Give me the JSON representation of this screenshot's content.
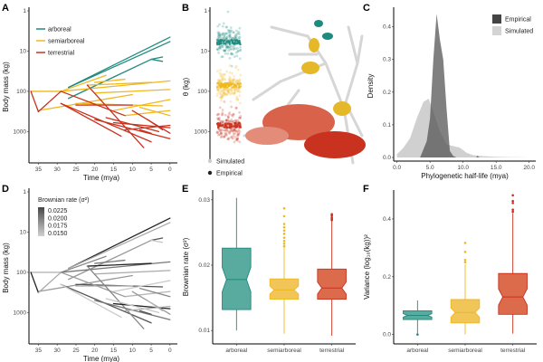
{
  "colors": {
    "arboreal": "#1f8a7e",
    "semiarboreal": "#f0b81e",
    "terrestrial": "#c8321e",
    "arboreal_fill": "#5aab9f",
    "semiarboreal_fill": "#f1c558",
    "terrestrial_fill": "#dc6b4c",
    "empirical": "#555555",
    "simulated": "#c8c8c8"
  },
  "chart_data": [
    {
      "panel": "A",
      "type": "line",
      "xlabel": "Time (mya)",
      "ylabel": "Body mass (kg)",
      "xticks": [
        "35",
        "30",
        "25",
        "20",
        "15",
        "10",
        "5",
        "0"
      ],
      "xlim": [
        37.5,
        -1
      ],
      "yticks": [
        "1",
        "10",
        "100",
        "1000"
      ],
      "ylog": true,
      "ylim": [
        1,
        6000
      ],
      "legend": [
        {
          "name": "arboreal"
        },
        {
          "name": "semiarboreal"
        },
        {
          "name": "terrestrial"
        }
      ],
      "segments": [
        {
          "g": "arboreal",
          "x1": 27,
          "y1": 80,
          "x2": 0,
          "y2": 4.5
        },
        {
          "g": "arboreal",
          "x1": 27,
          "y1": 80,
          "x2": 0,
          "y2": 5.8
        },
        {
          "g": "arboreal",
          "x1": 27,
          "y1": 150,
          "x2": 5,
          "y2": 16
        },
        {
          "g": "arboreal",
          "x1": 5,
          "y1": 16,
          "x2": 2,
          "y2": 14
        },
        {
          "g": "arboreal",
          "x1": 5,
          "y1": 16,
          "x2": 2,
          "y2": 18
        },
        {
          "g": "semiarboreal",
          "x1": 37,
          "y1": 100,
          "x2": 29,
          "y2": 100
        },
        {
          "g": "semiarboreal",
          "x1": 29,
          "y1": 100,
          "x2": 17,
          "y2": 40
        },
        {
          "g": "semiarboreal",
          "x1": 29,
          "y1": 100,
          "x2": 0,
          "y2": 55
        },
        {
          "g": "semiarboreal",
          "x1": 22,
          "y1": 70,
          "x2": 5,
          "y2": 60
        },
        {
          "g": "semiarboreal",
          "x1": 20,
          "y1": 110,
          "x2": 0,
          "y2": 90
        },
        {
          "g": "semiarboreal",
          "x1": 35,
          "y1": 300,
          "x2": 10,
          "y2": 120
        },
        {
          "g": "semiarboreal",
          "x1": 25,
          "y1": 200,
          "x2": 2,
          "y2": 230
        },
        {
          "g": "semiarboreal",
          "x1": 15,
          "y1": 300,
          "x2": 0,
          "y2": 160
        },
        {
          "g": "semiarboreal",
          "x1": 12,
          "y1": 400,
          "x2": 0,
          "y2": 300
        },
        {
          "g": "semiarboreal",
          "x1": 8,
          "y1": 250,
          "x2": 0,
          "y2": 400
        },
        {
          "g": "semiarboreal",
          "x1": 20,
          "y1": 60,
          "x2": 12,
          "y2": 50
        },
        {
          "g": "terrestrial",
          "x1": 37,
          "y1": 100,
          "x2": 35,
          "y2": 320
        },
        {
          "g": "terrestrial",
          "x1": 35,
          "y1": 320,
          "x2": 29,
          "y2": 100
        },
        {
          "g": "terrestrial",
          "x1": 29,
          "y1": 100,
          "x2": 12,
          "y2": 400
        },
        {
          "g": "terrestrial",
          "x1": 29,
          "y1": 200,
          "x2": 5,
          "y2": 1800
        },
        {
          "g": "terrestrial",
          "x1": 29,
          "y1": 200,
          "x2": 13,
          "y2": 1300
        },
        {
          "g": "terrestrial",
          "x1": 25,
          "y1": 220,
          "x2": 10,
          "y2": 220
        },
        {
          "g": "terrestrial",
          "x1": 22,
          "y1": 70,
          "x2": 7,
          "y2": 2500
        },
        {
          "g": "terrestrial",
          "x1": 20,
          "y1": 500,
          "x2": 0,
          "y2": 1500
        },
        {
          "g": "terrestrial",
          "x1": 15,
          "y1": 600,
          "x2": 0,
          "y2": 800
        },
        {
          "g": "terrestrial",
          "x1": 12,
          "y1": 900,
          "x2": 0,
          "y2": 700
        },
        {
          "g": "terrestrial",
          "x1": 10,
          "y1": 300,
          "x2": 0,
          "y2": 1100
        },
        {
          "g": "terrestrial",
          "x1": 8,
          "y1": 900,
          "x2": 5,
          "y2": 1100
        },
        {
          "g": "terrestrial",
          "x1": 17,
          "y1": 450,
          "x2": 3,
          "y2": 1000
        },
        {
          "g": "terrestrial",
          "x1": 6,
          "y1": 500,
          "x2": 2,
          "y2": 900
        }
      ]
    },
    {
      "panel": "B",
      "type": "scatter",
      "ylabel": "θ (kg)",
      "ylog": true,
      "yticks": [
        "1",
        "10",
        "100",
        "1000"
      ],
      "legend": [
        {
          "name": "Simulated"
        },
        {
          "name": "Empirical"
        }
      ],
      "groups": [
        {
          "name": "arboreal",
          "center": 6,
          "spread": [
            2,
            25
          ]
        },
        {
          "name": "semiarboreal",
          "center": 70,
          "spread": [
            25,
            180
          ]
        },
        {
          "name": "terrestrial",
          "center": 700,
          "spread": [
            350,
            1500
          ]
        }
      ]
    },
    {
      "panel": "C",
      "type": "area",
      "xlabel": "Phylogenetic half-life (mya)",
      "ylabel": "Density",
      "xticks": [
        "0.0",
        "5.0",
        "10.0",
        "15.0",
        "20.0"
      ],
      "xlim": [
        -0.5,
        21
      ],
      "yticks": [
        "0.0",
        "0.1",
        "0.2",
        "0.3",
        "0.4"
      ],
      "ylim": [
        0,
        0.46
      ],
      "legend": [
        {
          "name": "Empirical"
        },
        {
          "name": "Simulated"
        }
      ],
      "series": [
        {
          "name": "Simulated",
          "x": [
            0,
            0.5,
            1,
            2,
            3,
            4,
            4.8,
            5.5,
            6.5,
            7.5,
            8.5,
            9.5,
            10.5,
            11.5,
            13,
            15,
            17,
            20
          ],
          "y": [
            0.01,
            0.02,
            0.03,
            0.06,
            0.12,
            0.17,
            0.18,
            0.14,
            0.08,
            0.04,
            0.035,
            0.03,
            0.015,
            0.007,
            0.004,
            0.002,
            0.001,
            0
          ]
        },
        {
          "name": "Empirical",
          "x": [
            3.5,
            4.5,
            5,
            5.5,
            6,
            6.5,
            7,
            7.5,
            8,
            8.5,
            9,
            12,
            12.2,
            12.4
          ],
          "y": [
            0,
            0.05,
            0.12,
            0.3,
            0.44,
            0.36,
            0.3,
            0.15,
            0.02,
            0.005,
            0,
            0,
            0.006,
            0
          ]
        }
      ]
    },
    {
      "panel": "D",
      "type": "line",
      "xlabel": "Time (mya)",
      "ylabel": "Body mass (kg)",
      "xticks": [
        "35",
        "30",
        "25",
        "20",
        "15",
        "10",
        "5",
        "0"
      ],
      "yticks": [
        "1",
        "10",
        "100",
        "1000"
      ],
      "legend_title": "Brownian rate (σ²)",
      "legend": [
        "0.0225",
        "0.0200",
        "0.0175",
        "0.0150"
      ]
    },
    {
      "panel": "E",
      "type": "box",
      "ylabel": "Brownian rate (σ²)",
      "categories": [
        "arboreal",
        "semiarboreal",
        "terrestrial"
      ],
      "yticks": [
        "0.01",
        "0.02",
        "0.03"
      ],
      "ylim": [
        0.0085,
        0.0315
      ],
      "boxes": [
        {
          "min": 0.01,
          "q1": 0.0132,
          "median": 0.0178,
          "q3": 0.0226,
          "max": 0.0303,
          "outliers": []
        },
        {
          "min": 0.0095,
          "q1": 0.0148,
          "median": 0.0162,
          "q3": 0.0179,
          "max": 0.0227,
          "outliers": [
            0.0229,
            0.0233,
            0.0237,
            0.0242,
            0.0248,
            0.0253,
            0.0258,
            0.0263,
            0.0275,
            0.0287
          ]
        },
        {
          "min": 0.0092,
          "q1": 0.0148,
          "median": 0.0165,
          "q3": 0.0194,
          "max": 0.0268,
          "outliers": [
            0.0269,
            0.0271,
            0.0273,
            0.0276,
            0.0278
          ]
        }
      ]
    },
    {
      "panel": "F",
      "type": "box",
      "ylabel": "Variance (log₁₀(kg))²",
      "categories": [
        "arboreal",
        "semiarboreal",
        "terrestrial"
      ],
      "yticks": [
        "0.0",
        "0.2",
        "0.4"
      ],
      "ylim": [
        -0.02,
        0.5
      ],
      "boxes": [
        {
          "min": 0.003,
          "q1": 0.052,
          "median": 0.066,
          "q3": 0.082,
          "max": 0.118,
          "outliers": [
            0.0
          ]
        },
        {
          "min": 0.0,
          "q1": 0.04,
          "median": 0.076,
          "q3": 0.121,
          "max": 0.243,
          "outliers": [
            0.25,
            0.258,
            0.286,
            0.317
          ]
        },
        {
          "min": 0.003,
          "q1": 0.07,
          "median": 0.13,
          "q3": 0.211,
          "max": 0.42,
          "outliers": [
            0.425,
            0.432,
            0.455,
            0.462,
            0.482
          ]
        }
      ]
    }
  ],
  "panels": {
    "A": "A",
    "B": "B",
    "C": "C",
    "D": "D",
    "E": "E",
    "F": "F"
  }
}
